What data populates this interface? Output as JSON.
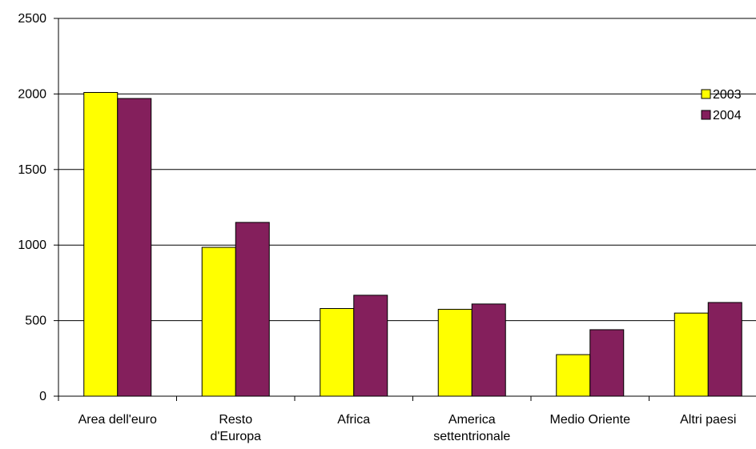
{
  "chart_data": {
    "type": "bar",
    "title": "",
    "xlabel": "",
    "ylabel": "",
    "categories": [
      [
        "Area dell'euro"
      ],
      [
        "Resto",
        "d'Europa"
      ],
      [
        "Africa"
      ],
      [
        "America",
        "settentrionale"
      ],
      [
        "Medio Oriente"
      ],
      [
        "Altri paesi"
      ]
    ],
    "series": [
      {
        "name": "2003",
        "color": "#FFFF00",
        "values": [
          2010,
          985,
          580,
          575,
          275,
          550
        ]
      },
      {
        "name": "2004",
        "color": "#841F5C",
        "values": [
          1970,
          1150,
          668,
          610,
          440,
          620
        ]
      }
    ],
    "ylim": [
      0,
      2500
    ],
    "yticks": [
      "0",
      "500",
      "1000",
      "1500",
      "2000",
      "2500"
    ],
    "grid": true,
    "legend": "right"
  }
}
